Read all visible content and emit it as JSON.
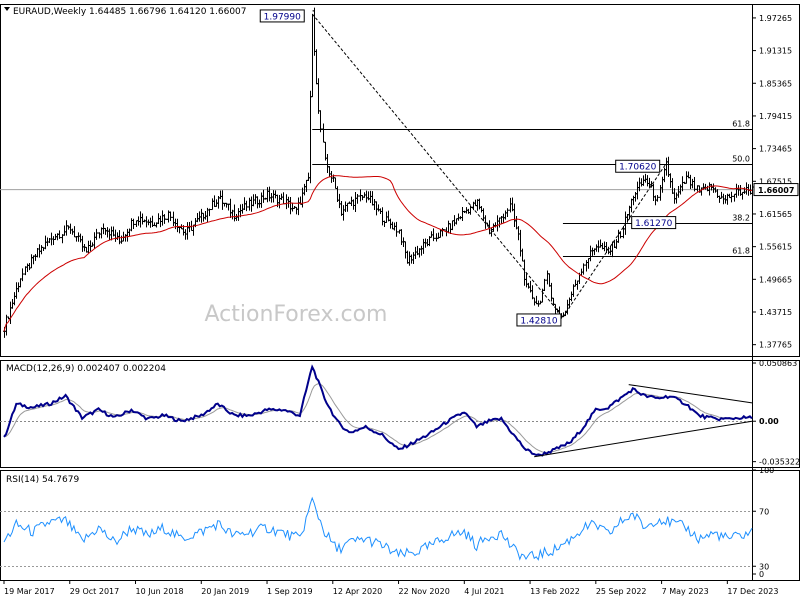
{
  "colors": {
    "background": "#ffffff",
    "bars": "#000000",
    "ma": "#cc0000",
    "macd_line": "#00008b",
    "macd_signal": "#9a9a9a",
    "rsi_line": "#1e90ff",
    "level_line": "#000000",
    "price_line": "#a0a0a0",
    "watermark": "#c8c8c8"
  },
  "chart_data": [
    {
      "panel": "price",
      "type": "ohlc",
      "title": "EURAUD,Weekly  1.64485 1.66796 1.64120 1.66007",
      "symbol": "EURAUD",
      "timeframe": "Weekly",
      "ohlc_current": {
        "open": 1.64485,
        "high": 1.66796,
        "low": 1.6412,
        "close": 1.66007
      },
      "current_price_label": "1.66007",
      "ylim": [
        1.357,
        1.998
      ],
      "yticks": [
        "1.97265",
        "1.91315",
        "1.85365",
        "1.79415",
        "1.73465",
        "1.67515",
        "1.61565",
        "1.55615",
        "1.49665",
        "1.43715",
        "1.37765"
      ],
      "x_range_weeks": [
        0,
        364
      ],
      "xticks": [
        {
          "week": 0,
          "label": "19 Mar 2017"
        },
        {
          "week": 32,
          "label": "29 Oct 2017"
        },
        {
          "week": 64,
          "label": "10 Jun 2018"
        },
        {
          "week": 96,
          "label": "20 Jan 2019"
        },
        {
          "week": 128,
          "label": "1 Sep 2019"
        },
        {
          "week": 160,
          "label": "12 Apr 2020"
        },
        {
          "week": 192,
          "label": "22 Nov 2020"
        },
        {
          "week": 224,
          "label": "4 Jul 2021"
        },
        {
          "week": 256,
          "label": "13 Feb 2022"
        },
        {
          "week": 288,
          "label": "25 Sep 2022"
        },
        {
          "week": 320,
          "label": "7 May 2023"
        },
        {
          "week": 352,
          "label": "17 Dec 2023"
        }
      ],
      "price_anchors": [
        [
          0,
          1.41
        ],
        [
          8,
          1.5
        ],
        [
          16,
          1.545
        ],
        [
          24,
          1.575
        ],
        [
          32,
          1.59
        ],
        [
          40,
          1.545
        ],
        [
          48,
          1.595
        ],
        [
          56,
          1.565
        ],
        [
          64,
          1.61
        ],
        [
          72,
          1.6
        ],
        [
          80,
          1.615
        ],
        [
          88,
          1.58
        ],
        [
          96,
          1.61
        ],
        [
          104,
          1.645
        ],
        [
          112,
          1.615
        ],
        [
          120,
          1.635
        ],
        [
          128,
          1.65
        ],
        [
          136,
          1.64
        ],
        [
          142,
          1.62
        ],
        [
          148,
          1.68
        ],
        [
          150,
          1.979
        ],
        [
          153,
          1.8
        ],
        [
          156,
          1.71
        ],
        [
          160,
          1.675
        ],
        [
          164,
          1.62
        ],
        [
          168,
          1.635
        ],
        [
          176,
          1.65
        ],
        [
          184,
          1.61
        ],
        [
          192,
          1.585
        ],
        [
          196,
          1.53
        ],
        [
          200,
          1.545
        ],
        [
          208,
          1.57
        ],
        [
          216,
          1.59
        ],
        [
          224,
          1.62
        ],
        [
          230,
          1.635
        ],
        [
          236,
          1.585
        ],
        [
          240,
          1.6
        ],
        [
          246,
          1.63
        ],
        [
          250,
          1.575
        ],
        [
          254,
          1.48
        ],
        [
          260,
          1.45
        ],
        [
          264,
          1.5
        ],
        [
          268,
          1.44
        ],
        [
          272,
          1.43
        ],
        [
          276,
          1.47
        ],
        [
          282,
          1.525
        ],
        [
          288,
          1.56
        ],
        [
          294,
          1.545
        ],
        [
          300,
          1.58
        ],
        [
          306,
          1.65
        ],
        [
          312,
          1.68
        ],
        [
          318,
          1.64
        ],
        [
          322,
          1.706
        ],
        [
          326,
          1.64
        ],
        [
          332,
          1.68
        ],
        [
          338,
          1.655
        ],
        [
          344,
          1.665
        ],
        [
          350,
          1.64
        ],
        [
          356,
          1.655
        ],
        [
          364,
          1.66
        ]
      ],
      "moving_average": {
        "color": "#cc0000"
      },
      "swing_labels": [
        {
          "text": "1.97990",
          "week": 150,
          "value": 1.9799
        },
        {
          "text": "1.70620",
          "week": 322,
          "value": 1.7062
        },
        {
          "text": "1.61270",
          "week": 322,
          "value": 1.6127
        },
        {
          "text": "1.42810",
          "week": 272,
          "value": 1.4281
        }
      ],
      "fib_levels": [
        {
          "label": "61.8",
          "value": 1.77,
          "x_start_week": 150
        },
        {
          "label": "50.0",
          "value": 1.7062,
          "x_start_week": 150
        },
        {
          "label": "38.2",
          "value": 1.6,
          "x_start_week": 272
        },
        {
          "label": "61.8",
          "value": 1.54,
          "x_start_week": 272
        }
      ],
      "trendlines": [
        {
          "from": [
            150,
            1.9799
          ],
          "to": [
            272,
            1.4281
          ]
        },
        {
          "from": [
            272,
            1.4281
          ],
          "to": [
            322,
            1.7062
          ]
        }
      ],
      "watermark": "ActionForex.com"
    },
    {
      "panel": "macd",
      "type": "line",
      "title": "MACD(12,26,9) 0.002407 0.002204",
      "ylim": [
        -0.04,
        0.0535
      ],
      "yticks": [
        "0.050863",
        "0.00",
        "-0.035322"
      ],
      "zero_label": "0.00",
      "anchors": [
        [
          0,
          -0.015
        ],
        [
          6,
          0.015
        ],
        [
          14,
          0.012
        ],
        [
          22,
          0.015
        ],
        [
          30,
          0.022
        ],
        [
          38,
          0.003
        ],
        [
          46,
          0.01
        ],
        [
          54,
          0.003
        ],
        [
          62,
          0.01
        ],
        [
          70,
          0.002
        ],
        [
          78,
          0.005
        ],
        [
          86,
          0.0
        ],
        [
          96,
          0.005
        ],
        [
          104,
          0.015
        ],
        [
          112,
          0.005
        ],
        [
          120,
          0.005
        ],
        [
          128,
          0.01
        ],
        [
          136,
          0.01
        ],
        [
          144,
          0.005
        ],
        [
          150,
          0.048
        ],
        [
          156,
          0.02
        ],
        [
          162,
          0.0
        ],
        [
          168,
          -0.01
        ],
        [
          176,
          -0.005
        ],
        [
          184,
          -0.012
        ],
        [
          192,
          -0.025
        ],
        [
          200,
          -0.018
        ],
        [
          208,
          -0.01
        ],
        [
          216,
          0.0
        ],
        [
          224,
          0.008
        ],
        [
          230,
          -0.005
        ],
        [
          236,
          0.0
        ],
        [
          242,
          0.002
        ],
        [
          248,
          -0.012
        ],
        [
          254,
          -0.025
        ],
        [
          260,
          -0.03
        ],
        [
          268,
          -0.025
        ],
        [
          276,
          -0.018
        ],
        [
          282,
          -0.005
        ],
        [
          288,
          0.01
        ],
        [
          294,
          0.012
        ],
        [
          300,
          0.02
        ],
        [
          306,
          0.028
        ],
        [
          312,
          0.022
        ],
        [
          318,
          0.02
        ],
        [
          324,
          0.022
        ],
        [
          332,
          0.015
        ],
        [
          338,
          0.005
        ],
        [
          346,
          0.002
        ],
        [
          352,
          0.002
        ],
        [
          358,
          0.003
        ],
        [
          364,
          0.003
        ]
      ],
      "trendlines": [
        {
          "from": [
            258,
            -0.031
          ],
          "to": [
            364,
            0.0
          ]
        },
        {
          "from": [
            304,
            0.032
          ],
          "to": [
            364,
            0.016
          ]
        }
      ]
    },
    {
      "panel": "rsi",
      "type": "line",
      "title": "RSI(14) 54.7679",
      "ylim": [
        20,
        100
      ],
      "yticks": [
        "100",
        "70",
        "30",
        "0"
      ],
      "levels": [
        70,
        30
      ],
      "anchors": [
        [
          0,
          48
        ],
        [
          6,
          60
        ],
        [
          14,
          55
        ],
        [
          22,
          62
        ],
        [
          30,
          63
        ],
        [
          38,
          48
        ],
        [
          46,
          58
        ],
        [
          54,
          47
        ],
        [
          62,
          58
        ],
        [
          70,
          52
        ],
        [
          78,
          58
        ],
        [
          86,
          50
        ],
        [
          96,
          55
        ],
        [
          104,
          61
        ],
        [
          112,
          52
        ],
        [
          120,
          55
        ],
        [
          128,
          58
        ],
        [
          136,
          54
        ],
        [
          144,
          50
        ],
        [
          150,
          78
        ],
        [
          156,
          55
        ],
        [
          162,
          42
        ],
        [
          168,
          47
        ],
        [
          176,
          50
        ],
        [
          184,
          45
        ],
        [
          192,
          38
        ],
        [
          200,
          40
        ],
        [
          208,
          45
        ],
        [
          216,
          52
        ],
        [
          224,
          55
        ],
        [
          230,
          45
        ],
        [
          236,
          52
        ],
        [
          242,
          54
        ],
        [
          248,
          42
        ],
        [
          254,
          36
        ],
        [
          260,
          38
        ],
        [
          268,
          42
        ],
        [
          276,
          50
        ],
        [
          282,
          58
        ],
        [
          288,
          60
        ],
        [
          294,
          53
        ],
        [
          300,
          62
        ],
        [
          306,
          68
        ],
        [
          312,
          58
        ],
        [
          318,
          65
        ],
        [
          324,
          62
        ],
        [
          332,
          58
        ],
        [
          338,
          50
        ],
        [
          346,
          54
        ],
        [
          352,
          50
        ],
        [
          358,
          52
        ],
        [
          364,
          55
        ]
      ]
    }
  ]
}
